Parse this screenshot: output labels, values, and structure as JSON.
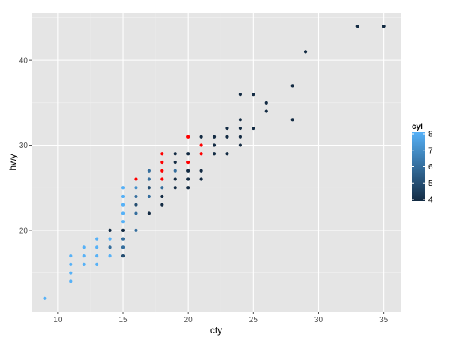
{
  "chart_data": {
    "type": "scatter",
    "title": "",
    "xlabel": "cty",
    "ylabel": "hwy",
    "xlim": [
      8,
      36.3
    ],
    "ylim": [
      10.4,
      45.6
    ],
    "x_ticks": [
      10,
      15,
      20,
      25,
      30,
      35
    ],
    "y_ticks": [
      20,
      30,
      40
    ],
    "grid": true,
    "legend": {
      "title": "cyl",
      "placement": "right",
      "range": [
        4,
        8
      ],
      "ticks": [
        4,
        5,
        6,
        7,
        8
      ],
      "low_color": "#132B43",
      "high_color": "#56B1F7"
    },
    "highlight_color": "#ff0000",
    "points": [
      {
        "x": 9,
        "y": 12,
        "c": 8
      },
      {
        "x": 11,
        "y": 14,
        "c": 8
      },
      {
        "x": 11,
        "y": 15,
        "c": 8
      },
      {
        "x": 11,
        "y": 16,
        "c": 8
      },
      {
        "x": 11,
        "y": 17,
        "c": 8
      },
      {
        "x": 12,
        "y": 16,
        "c": 8
      },
      {
        "x": 12,
        "y": 17,
        "c": 8
      },
      {
        "x": 12,
        "y": 18,
        "c": 8
      },
      {
        "x": 13,
        "y": 16,
        "c": 8
      },
      {
        "x": 13,
        "y": 17,
        "c": 8
      },
      {
        "x": 13,
        "y": 18,
        "c": 8
      },
      {
        "x": 13,
        "y": 19,
        "c": 8
      },
      {
        "x": 14,
        "y": 17,
        "c": 8
      },
      {
        "x": 14,
        "y": 18,
        "c": 6
      },
      {
        "x": 14,
        "y": 19,
        "c": 8
      },
      {
        "x": 14,
        "y": 20,
        "c": 4
      },
      {
        "x": 15,
        "y": 17,
        "c": 5
      },
      {
        "x": 15,
        "y": 18,
        "c": 6
      },
      {
        "x": 15,
        "y": 19,
        "c": 6
      },
      {
        "x": 15,
        "y": 20,
        "c": 4
      },
      {
        "x": 15,
        "y": 21,
        "c": 8
      },
      {
        "x": 15,
        "y": 22,
        "c": 8
      },
      {
        "x": 15,
        "y": 23,
        "c": 8
      },
      {
        "x": 15,
        "y": 24,
        "c": 8
      },
      {
        "x": 15,
        "y": 25,
        "c": 8
      },
      {
        "x": 16,
        "y": 20,
        "c": 6
      },
      {
        "x": 16,
        "y": 22,
        "c": 6
      },
      {
        "x": 16,
        "y": 23,
        "c": 5
      },
      {
        "x": 16,
        "y": 24,
        "c": 6
      },
      {
        "x": 16,
        "y": 25,
        "c": 7
      },
      {
        "x": 16,
        "y": 26,
        "c": 6,
        "hl": true
      },
      {
        "x": 17,
        "y": 22,
        "c": 4
      },
      {
        "x": 17,
        "y": 24,
        "c": 6
      },
      {
        "x": 17,
        "y": 25,
        "c": 5
      },
      {
        "x": 17,
        "y": 26,
        "c": 6
      },
      {
        "x": 17,
        "y": 27,
        "c": 6
      },
      {
        "x": 18,
        "y": 23,
        "c": 4
      },
      {
        "x": 18,
        "y": 24,
        "c": 4
      },
      {
        "x": 18,
        "y": 25,
        "c": 6
      },
      {
        "x": 18,
        "y": 26,
        "c": 6,
        "hl": true
      },
      {
        "x": 18,
        "y": 27,
        "c": 6,
        "hl": true
      },
      {
        "x": 18,
        "y": 28,
        "c": 6,
        "hl": true
      },
      {
        "x": 18,
        "y": 29,
        "c": 6,
        "hl": true
      },
      {
        "x": 19,
        "y": 25,
        "c": 4
      },
      {
        "x": 19,
        "y": 26,
        "c": 4
      },
      {
        "x": 19,
        "y": 27,
        "c": 6
      },
      {
        "x": 19,
        "y": 28,
        "c": 4
      },
      {
        "x": 19,
        "y": 29,
        "c": 4
      },
      {
        "x": 20,
        "y": 25,
        "c": 4
      },
      {
        "x": 20,
        "y": 26,
        "c": 4
      },
      {
        "x": 20,
        "y": 27,
        "c": 4
      },
      {
        "x": 20,
        "y": 28,
        "c": 4,
        "hl": true
      },
      {
        "x": 20,
        "y": 29,
        "c": 4
      },
      {
        "x": 20,
        "y": 31,
        "c": 4,
        "hl": true
      },
      {
        "x": 21,
        "y": 26,
        "c": 4
      },
      {
        "x": 21,
        "y": 27,
        "c": 4
      },
      {
        "x": 21,
        "y": 29,
        "c": 4,
        "hl": true
      },
      {
        "x": 21,
        "y": 30,
        "c": 4,
        "hl": true
      },
      {
        "x": 21,
        "y": 31,
        "c": 4
      },
      {
        "x": 22,
        "y": 29,
        "c": 4
      },
      {
        "x": 22,
        "y": 30,
        "c": 4
      },
      {
        "x": 22,
        "y": 31,
        "c": 4
      },
      {
        "x": 23,
        "y": 29,
        "c": 4
      },
      {
        "x": 23,
        "y": 31,
        "c": 4
      },
      {
        "x": 23,
        "y": 32,
        "c": 4
      },
      {
        "x": 24,
        "y": 30,
        "c": 4
      },
      {
        "x": 24,
        "y": 31,
        "c": 4
      },
      {
        "x": 24,
        "y": 32,
        "c": 4
      },
      {
        "x": 24,
        "y": 33,
        "c": 4
      },
      {
        "x": 24,
        "y": 36,
        "c": 4
      },
      {
        "x": 25,
        "y": 32,
        "c": 4
      },
      {
        "x": 25,
        "y": 36,
        "c": 4
      },
      {
        "x": 26,
        "y": 34,
        "c": 4
      },
      {
        "x": 26,
        "y": 35,
        "c": 4
      },
      {
        "x": 28,
        "y": 33,
        "c": 4
      },
      {
        "x": 28,
        "y": 37,
        "c": 4
      },
      {
        "x": 29,
        "y": 41,
        "c": 4
      },
      {
        "x": 33,
        "y": 44,
        "c": 4
      },
      {
        "x": 35,
        "y": 44,
        "c": 4
      }
    ]
  }
}
